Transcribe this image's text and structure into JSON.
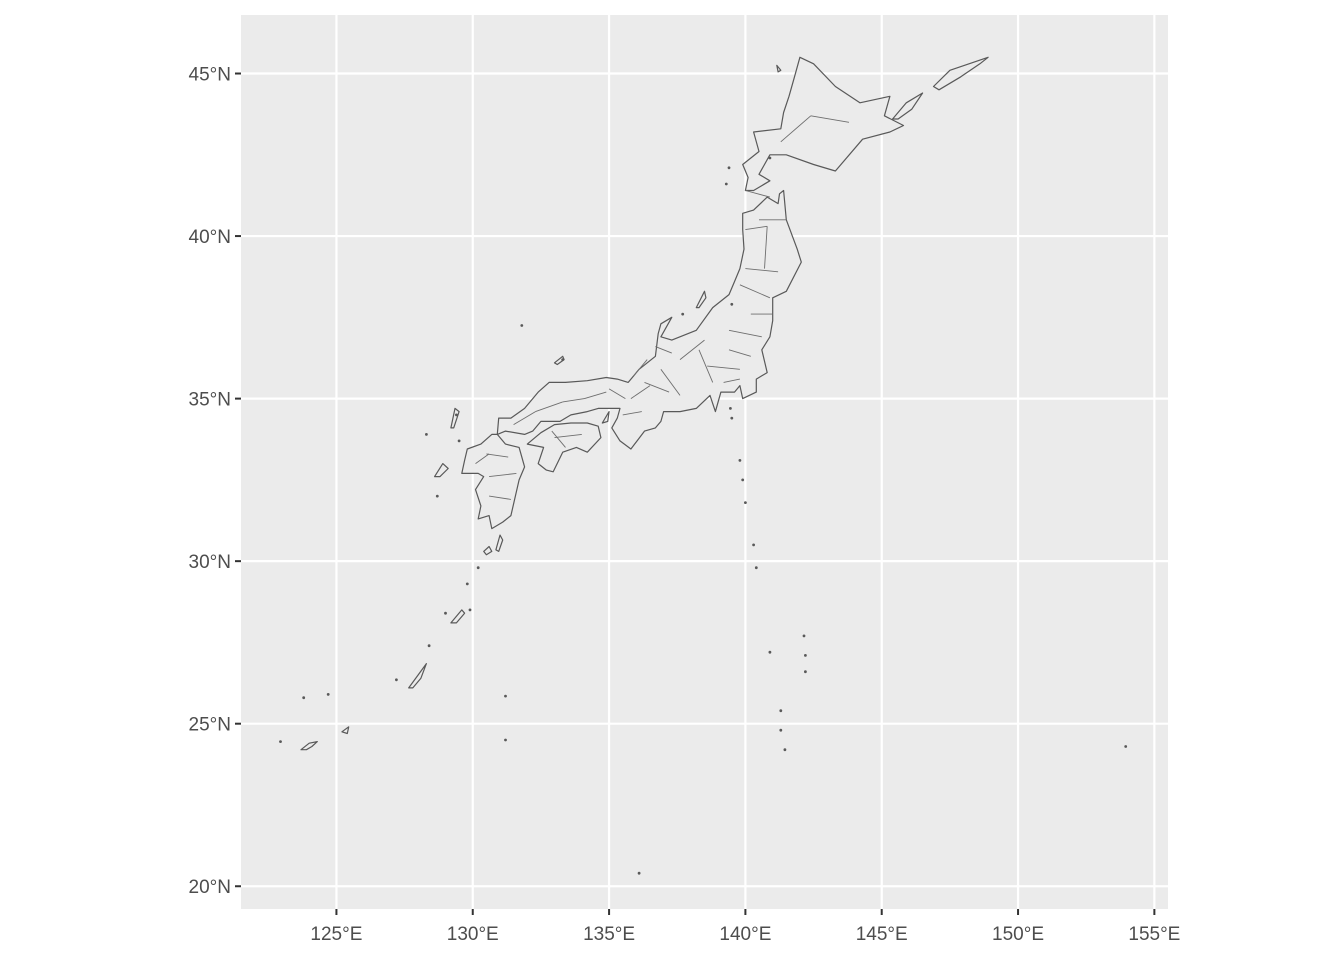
{
  "chart_data": {
    "type": "map",
    "title": "",
    "xlabel": "",
    "ylabel": "",
    "xlim": [
      121.5,
      155.5
    ],
    "ylim": [
      19.3,
      46.8
    ],
    "x_ticks": [
      {
        "value": 125,
        "label": "125°E"
      },
      {
        "value": 130,
        "label": "130°E"
      },
      {
        "value": 135,
        "label": "135°E"
      },
      {
        "value": 140,
        "label": "140°E"
      },
      {
        "value": 145,
        "label": "145°E"
      },
      {
        "value": 150,
        "label": "150°E"
      },
      {
        "value": 155,
        "label": "155°E"
      }
    ],
    "y_ticks": [
      {
        "value": 20,
        "label": "20°N"
      },
      {
        "value": 25,
        "label": "25°N"
      },
      {
        "value": 30,
        "label": "30°N"
      },
      {
        "value": 35,
        "label": "35°N"
      },
      {
        "value": 40,
        "label": "40°N"
      },
      {
        "value": 45,
        "label": "45°N"
      }
    ],
    "grid": true,
    "panel_color": "#ebebeb",
    "land_fill": "#ebebeb",
    "border_color": "#595959",
    "regions": [
      {
        "name": "Hokkaido",
        "coords": [
          [
            140.0,
            41.4
          ],
          [
            140.1,
            41.8
          ],
          [
            139.9,
            42.2
          ],
          [
            140.5,
            42.6
          ],
          [
            140.3,
            43.2
          ],
          [
            141.3,
            43.3
          ],
          [
            141.4,
            43.8
          ],
          [
            141.6,
            44.3
          ],
          [
            141.8,
            44.9
          ],
          [
            142.0,
            45.5
          ],
          [
            142.5,
            45.3
          ],
          [
            143.3,
            44.6
          ],
          [
            144.2,
            44.1
          ],
          [
            145.3,
            44.3
          ],
          [
            145.1,
            43.7
          ],
          [
            145.8,
            43.4
          ],
          [
            145.3,
            43.2
          ],
          [
            144.3,
            42.98
          ],
          [
            143.3,
            42.0
          ],
          [
            142.5,
            42.2
          ],
          [
            141.5,
            42.5
          ],
          [
            140.9,
            42.5
          ],
          [
            140.5,
            41.9
          ],
          [
            140.9,
            41.7
          ],
          [
            140.3,
            41.4
          ]
        ]
      },
      {
        "name": "Honshu",
        "coords": [
          [
            141.4,
            41.4
          ],
          [
            141.5,
            40.5
          ],
          [
            141.9,
            39.6
          ],
          [
            142.05,
            39.2
          ],
          [
            141.5,
            38.3
          ],
          [
            141.0,
            38.1
          ],
          [
            141.0,
            37.4
          ],
          [
            140.9,
            36.9
          ],
          [
            140.6,
            36.5
          ],
          [
            140.8,
            35.8
          ],
          [
            140.4,
            35.6
          ],
          [
            140.4,
            35.2
          ],
          [
            139.9,
            35.0
          ],
          [
            139.8,
            35.4
          ],
          [
            139.6,
            35.2
          ],
          [
            139.1,
            35.2
          ],
          [
            138.9,
            34.6
          ],
          [
            138.7,
            35.1
          ],
          [
            138.2,
            34.7
          ],
          [
            137.6,
            34.6
          ],
          [
            137.0,
            34.6
          ],
          [
            136.9,
            34.3
          ],
          [
            136.7,
            34.1
          ],
          [
            136.3,
            34.0
          ],
          [
            135.8,
            33.45
          ],
          [
            135.4,
            33.7
          ],
          [
            135.1,
            34.1
          ],
          [
            135.3,
            34.4
          ],
          [
            135.4,
            34.7
          ],
          [
            134.6,
            34.7
          ],
          [
            134.2,
            34.6
          ],
          [
            133.6,
            34.5
          ],
          [
            133.2,
            34.3
          ],
          [
            132.5,
            34.3
          ],
          [
            132.2,
            34.0
          ],
          [
            131.9,
            33.9
          ],
          [
            131.2,
            34.0
          ],
          [
            130.9,
            33.9
          ],
          [
            130.95,
            34.4
          ],
          [
            131.4,
            34.4
          ],
          [
            131.9,
            34.7
          ],
          [
            132.4,
            35.2
          ],
          [
            132.8,
            35.5
          ],
          [
            133.4,
            35.5
          ],
          [
            134.2,
            35.55
          ],
          [
            134.9,
            35.65
          ],
          [
            135.3,
            35.6
          ],
          [
            135.7,
            35.5
          ],
          [
            136.1,
            35.9
          ],
          [
            136.7,
            36.3
          ],
          [
            136.8,
            37.0
          ],
          [
            136.9,
            37.3
          ],
          [
            137.3,
            37.5
          ],
          [
            136.9,
            36.9
          ],
          [
            137.3,
            36.8
          ],
          [
            138.2,
            37.1
          ],
          [
            138.8,
            37.8
          ],
          [
            139.4,
            38.2
          ],
          [
            139.6,
            38.6
          ],
          [
            139.8,
            39.0
          ],
          [
            139.95,
            39.6
          ],
          [
            139.9,
            40.2
          ],
          [
            139.9,
            40.7
          ],
          [
            140.3,
            40.8
          ],
          [
            140.8,
            41.2
          ],
          [
            141.2,
            41.0
          ],
          [
            141.25,
            41.3
          ]
        ]
      },
      {
        "name": "Shikoku",
        "coords": [
          [
            132.4,
            33.0
          ],
          [
            132.6,
            33.5
          ],
          [
            132.0,
            33.6
          ],
          [
            132.5,
            33.95
          ],
          [
            133.0,
            34.2
          ],
          [
            133.6,
            34.25
          ],
          [
            134.2,
            34.25
          ],
          [
            134.6,
            34.15
          ],
          [
            134.7,
            33.8
          ],
          [
            134.2,
            33.35
          ],
          [
            133.8,
            33.5
          ],
          [
            133.3,
            33.35
          ],
          [
            132.95,
            32.75
          ],
          [
            132.7,
            32.8
          ]
        ]
      },
      {
        "name": "Kyushu",
        "coords": [
          [
            130.9,
            33.9
          ],
          [
            131.2,
            33.6
          ],
          [
            131.7,
            33.5
          ],
          [
            131.9,
            32.9
          ],
          [
            131.7,
            32.5
          ],
          [
            131.4,
            31.4
          ],
          [
            131.1,
            31.2
          ],
          [
            130.7,
            31.0
          ],
          [
            130.6,
            31.4
          ],
          [
            130.2,
            31.3
          ],
          [
            130.3,
            31.7
          ],
          [
            130.1,
            32.2
          ],
          [
            130.4,
            32.6
          ],
          [
            130.2,
            32.7
          ],
          [
            129.6,
            32.7
          ],
          [
            129.7,
            33.1
          ],
          [
            129.8,
            33.45
          ],
          [
            130.3,
            33.6
          ],
          [
            130.7,
            33.9
          ]
        ]
      },
      {
        "name": "Sakhalin tip / Rishiri",
        "coords": [
          [
            141.15,
            45.25
          ],
          [
            141.3,
            45.1
          ],
          [
            141.2,
            45.05
          ]
        ]
      },
      {
        "name": "Etorofu",
        "coords": [
          [
            146.9,
            44.6
          ],
          [
            147.5,
            45.1
          ],
          [
            148.2,
            45.3
          ],
          [
            148.9,
            45.5
          ],
          [
            148.6,
            45.3
          ],
          [
            147.9,
            44.9
          ],
          [
            147.1,
            44.5
          ]
        ]
      },
      {
        "name": "Kunashiri",
        "coords": [
          [
            145.4,
            43.6
          ],
          [
            145.9,
            44.1
          ],
          [
            146.5,
            44.4
          ],
          [
            146.1,
            43.9
          ],
          [
            145.6,
            43.6
          ]
        ]
      },
      {
        "name": "Sado",
        "coords": [
          [
            138.2,
            37.8
          ],
          [
            138.5,
            38.3
          ],
          [
            138.55,
            38.1
          ],
          [
            138.3,
            37.8
          ]
        ]
      },
      {
        "name": "Okinawa",
        "coords": [
          [
            127.65,
            26.1
          ],
          [
            128.0,
            26.5
          ],
          [
            128.3,
            26.85
          ],
          [
            128.1,
            26.4
          ],
          [
            127.8,
            26.1
          ]
        ]
      },
      {
        "name": "Amami",
        "coords": [
          [
            129.2,
            28.1
          ],
          [
            129.6,
            28.5
          ],
          [
            129.7,
            28.4
          ],
          [
            129.4,
            28.1
          ]
        ]
      },
      {
        "name": "Tanegashima",
        "coords": [
          [
            130.85,
            30.35
          ],
          [
            131.0,
            30.8
          ],
          [
            131.1,
            30.65
          ],
          [
            130.95,
            30.3
          ]
        ]
      },
      {
        "name": "Yakushima",
        "coords": [
          [
            130.4,
            30.3
          ],
          [
            130.6,
            30.45
          ],
          [
            130.7,
            30.3
          ],
          [
            130.5,
            30.2
          ]
        ]
      },
      {
        "name": "Tsushima",
        "coords": [
          [
            129.2,
            34.1
          ],
          [
            129.35,
            34.7
          ],
          [
            129.5,
            34.6
          ],
          [
            129.3,
            34.1
          ]
        ]
      },
      {
        "name": "Goto",
        "coords": [
          [
            128.6,
            32.6
          ],
          [
            128.9,
            33.0
          ],
          [
            129.1,
            32.85
          ],
          [
            128.8,
            32.6
          ]
        ]
      },
      {
        "name": "Iriomote-Ishigaki",
        "coords": [
          [
            123.7,
            24.2
          ],
          [
            124.0,
            24.4
          ],
          [
            124.3,
            24.45
          ],
          [
            124.1,
            24.3
          ],
          [
            123.9,
            24.2
          ]
        ]
      },
      {
        "name": "Miyako",
        "coords": [
          [
            125.2,
            24.75
          ],
          [
            125.45,
            24.9
          ],
          [
            125.4,
            24.7
          ]
        ]
      },
      {
        "name": "Oki",
        "coords": [
          [
            133.0,
            36.1
          ],
          [
            133.3,
            36.3
          ],
          [
            133.35,
            36.2
          ],
          [
            133.1,
            36.05
          ]
        ]
      },
      {
        "name": "Awaji",
        "coords": [
          [
            134.75,
            34.25
          ],
          [
            135.0,
            34.6
          ],
          [
            134.95,
            34.3
          ]
        ]
      }
    ],
    "islets": [
      {
        "lon": 139.45,
        "lat": 34.7
      },
      {
        "lon": 139.5,
        "lat": 34.4
      },
      {
        "lon": 139.8,
        "lat": 33.1
      },
      {
        "lon": 139.9,
        "lat": 32.5
      },
      {
        "lon": 140.0,
        "lat": 31.8
      },
      {
        "lon": 140.3,
        "lat": 30.5
      },
      {
        "lon": 140.4,
        "lat": 29.8
      },
      {
        "lon": 142.15,
        "lat": 27.7
      },
      {
        "lon": 142.2,
        "lat": 27.1
      },
      {
        "lon": 142.2,
        "lat": 26.6
      },
      {
        "lon": 140.9,
        "lat": 27.2
      },
      {
        "lon": 141.3,
        "lat": 25.4
      },
      {
        "lon": 141.3,
        "lat": 24.8
      },
      {
        "lon": 141.45,
        "lat": 24.2
      },
      {
        "lon": 136.1,
        "lat": 20.4
      },
      {
        "lon": 153.95,
        "lat": 24.3
      },
      {
        "lon": 131.2,
        "lat": 25.85
      },
      {
        "lon": 131.2,
        "lat": 24.5
      },
      {
        "lon": 131.8,
        "lat": 37.25
      },
      {
        "lon": 128.7,
        "lat": 32.0
      },
      {
        "lon": 123.8,
        "lat": 25.8
      },
      {
        "lon": 124.7,
        "lat": 25.9
      },
      {
        "lon": 122.95,
        "lat": 24.45
      },
      {
        "lon": 127.2,
        "lat": 26.35
      },
      {
        "lon": 128.4,
        "lat": 27.4
      },
      {
        "lon": 129.8,
        "lat": 29.3
      },
      {
        "lon": 130.2,
        "lat": 29.8
      },
      {
        "lon": 129.9,
        "lat": 28.5
      },
      {
        "lon": 129.0,
        "lat": 28.4
      },
      {
        "lon": 133.3,
        "lat": 36.2
      },
      {
        "lon": 137.7,
        "lat": 37.6
      },
      {
        "lon": 140.9,
        "lat": 42.4
      },
      {
        "lon": 139.4,
        "lat": 42.1
      },
      {
        "lon": 139.3,
        "lat": 41.6
      },
      {
        "lon": 139.5,
        "lat": 37.9
      },
      {
        "lon": 129.5,
        "lat": 33.7
      },
      {
        "lon": 129.4,
        "lat": 34.5
      },
      {
        "lon": 128.3,
        "lat": 33.9
      }
    ],
    "prefecture_lines": [
      [
        [
          140.0,
          41.4
        ],
        [
          140.9,
          41.2
        ]
      ],
      [
        [
          140.5,
          40.5
        ],
        [
          141.5,
          40.5
        ]
      ],
      [
        [
          140.0,
          40.2
        ],
        [
          140.8,
          40.3
        ]
      ],
      [
        [
          140.8,
          40.3
        ],
        [
          140.7,
          39.0
        ]
      ],
      [
        [
          140.0,
          39.0
        ],
        [
          141.2,
          38.9
        ]
      ],
      [
        [
          139.8,
          38.5
        ],
        [
          140.9,
          38.1
        ]
      ],
      [
        [
          140.2,
          37.6
        ],
        [
          141.0,
          37.6
        ]
      ],
      [
        [
          139.4,
          37.1
        ],
        [
          140.6,
          36.9
        ]
      ],
      [
        [
          139.4,
          36.5
        ],
        [
          140.2,
          36.3
        ]
      ],
      [
        [
          138.6,
          36.0
        ],
        [
          139.8,
          35.9
        ]
      ],
      [
        [
          139.2,
          35.5
        ],
        [
          139.8,
          35.6
        ]
      ],
      [
        [
          138.3,
          36.5
        ],
        [
          138.8,
          35.5
        ]
      ],
      [
        [
          137.6,
          36.2
        ],
        [
          138.5,
          36.8
        ]
      ],
      [
        [
          136.9,
          35.9
        ],
        [
          137.6,
          35.1
        ]
      ],
      [
        [
          136.3,
          35.5
        ],
        [
          137.2,
          35.2
        ]
      ],
      [
        [
          135.8,
          35.0
        ],
        [
          136.5,
          35.4
        ]
      ],
      [
        [
          135.5,
          34.5
        ],
        [
          136.2,
          34.6
        ]
      ],
      [
        [
          135.0,
          35.3
        ],
        [
          135.6,
          35.0
        ]
      ],
      [
        [
          134.1,
          35.0
        ],
        [
          134.9,
          35.2
        ]
      ],
      [
        [
          133.3,
          34.9
        ],
        [
          134.1,
          35.0
        ]
      ],
      [
        [
          132.3,
          34.6
        ],
        [
          133.3,
          34.9
        ]
      ],
      [
        [
          131.5,
          34.2
        ],
        [
          132.3,
          34.6
        ]
      ],
      [
        [
          133.0,
          33.8
        ],
        [
          134.0,
          33.9
        ]
      ],
      [
        [
          132.9,
          34.0
        ],
        [
          133.4,
          33.5
        ]
      ],
      [
        [
          130.5,
          33.3
        ],
        [
          131.3,
          33.2
        ]
      ],
      [
        [
          130.6,
          32.6
        ],
        [
          131.6,
          32.7
        ]
      ],
      [
        [
          130.6,
          32.0
        ],
        [
          131.4,
          31.9
        ]
      ],
      [
        [
          130.1,
          33.0
        ],
        [
          130.6,
          33.3
        ]
      ],
      [
        [
          135.9,
          35.7
        ],
        [
          136.4,
          36.2
        ]
      ],
      [
        [
          136.7,
          36.6
        ],
        [
          137.3,
          36.4
        ]
      ],
      [
        [
          141.3,
          42.9
        ],
        [
          142.4,
          43.7
        ]
      ],
      [
        [
          142.4,
          43.7
        ],
        [
          143.8,
          43.5
        ]
      ]
    ]
  }
}
